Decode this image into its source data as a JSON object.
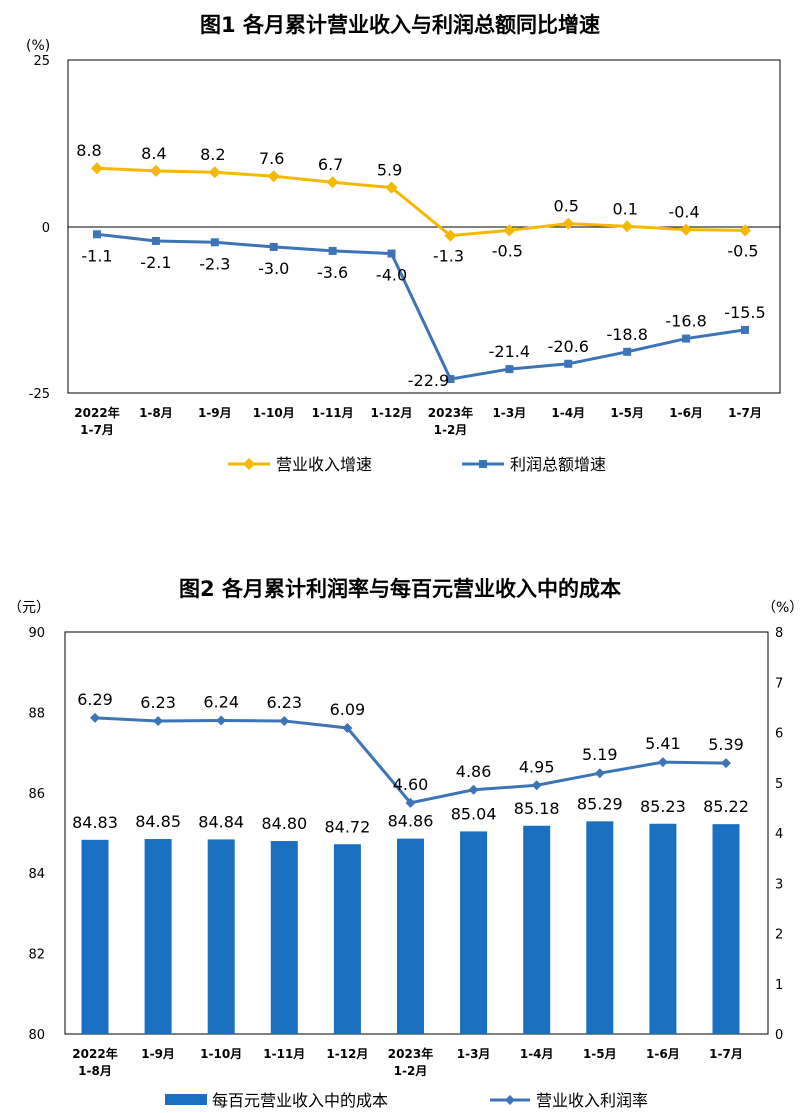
{
  "chart_data": [
    {
      "type": "line",
      "title": "图1  各月累计营业收入与利润总额同比增速",
      "y_unit": "(%)",
      "ylim": [
        -25,
        25
      ],
      "y_ticks": [
        "25",
        "0",
        "-25"
      ],
      "categories": [
        [
          "2022年",
          "1-7月"
        ],
        [
          "1-8月"
        ],
        [
          "1-9月"
        ],
        [
          "1-10月"
        ],
        [
          "1-11月"
        ],
        [
          "1-12月"
        ],
        [
          "2023年",
          "1-2月"
        ],
        [
          "1-3月"
        ],
        [
          "1-4月"
        ],
        [
          "1-5月"
        ],
        [
          "1-6月"
        ],
        [
          "1-7月"
        ]
      ],
      "series": [
        {
          "name": "营业收入增速",
          "color": "#f5b800",
          "values": [
            8.8,
            8.4,
            8.2,
            7.6,
            6.7,
            5.9,
            -1.3,
            -0.5,
            0.5,
            0.1,
            -0.4,
            -0.5
          ],
          "labels": [
            "8.8",
            "8.4",
            "8.2",
            "7.6",
            "6.7",
            "5.9",
            "-1.3",
            "-0.5",
            "0.5",
            "0.1",
            "-0.4",
            "-0.5"
          ]
        },
        {
          "name": "利润总额增速",
          "color": "#3d74b8",
          "values": [
            -1.1,
            -2.1,
            -2.3,
            -3.0,
            -3.6,
            -4.0,
            -22.9,
            -21.4,
            -20.6,
            -18.8,
            -16.8,
            -15.5
          ],
          "labels": [
            "-1.1",
            "-2.1",
            "-2.3",
            "-3.0",
            "-3.6",
            "-4.0",
            "-22.9",
            "-21.4",
            "-20.6",
            "-18.8",
            "-16.8",
            "-15.5"
          ]
        }
      ],
      "grid": false,
      "legend_position": "bottom"
    },
    {
      "type": "bar+line",
      "title": "图2  各月累计利润率与每百元营业收入中的成本",
      "y_left_unit": "（元）",
      "y_right_unit": "（%）",
      "ylim_left": [
        80,
        90
      ],
      "ylim_right": [
        0,
        8
      ],
      "y_left_ticks": [
        "90",
        "88",
        "86",
        "84",
        "82",
        "80"
      ],
      "y_right_ticks": [
        "8",
        "7",
        "6",
        "5",
        "4",
        "3",
        "2",
        "1",
        "0"
      ],
      "categories": [
        [
          "2022年",
          "1-8月"
        ],
        [
          "1-9月"
        ],
        [
          "1-10月"
        ],
        [
          "1-11月"
        ],
        [
          "1-12月"
        ],
        [
          "2023年",
          "1-2月"
        ],
        [
          "1-3月"
        ],
        [
          "1-4月"
        ],
        [
          "1-5月"
        ],
        [
          "1-6月"
        ],
        [
          "1-7月"
        ]
      ],
      "bar_series": {
        "name": "每百元营业收入中的成本",
        "color": "#1a6fc0",
        "axis": "left",
        "values": [
          84.83,
          84.85,
          84.84,
          84.8,
          84.72,
          84.86,
          85.04,
          85.18,
          85.29,
          85.23,
          85.22
        ],
        "labels": [
          "84.83",
          "84.85",
          "84.84",
          "84.80",
          "84.72",
          "84.86",
          "85.04",
          "85.18",
          "85.29",
          "85.23",
          "85.22"
        ]
      },
      "line_series": {
        "name": "营业收入利润率",
        "color": "#3d74b8",
        "axis": "right",
        "values": [
          6.29,
          6.23,
          6.24,
          6.23,
          6.09,
          4.6,
          4.86,
          4.95,
          5.19,
          5.41,
          5.39
        ],
        "labels": [
          "6.29",
          "6.23",
          "6.24",
          "6.23",
          "6.09",
          "4.60",
          "4.86",
          "4.95",
          "5.19",
          "5.41",
          "5.39"
        ]
      },
      "grid": false,
      "legend_position": "bottom"
    }
  ]
}
